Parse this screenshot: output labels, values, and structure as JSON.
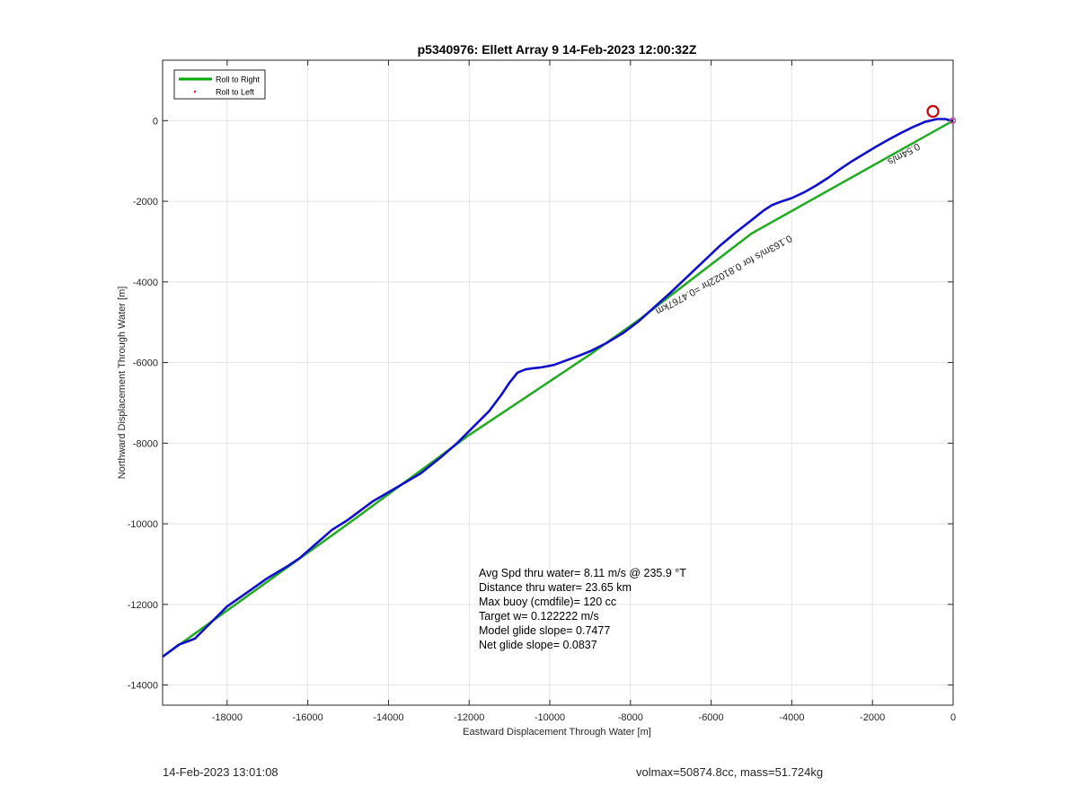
{
  "chart_data": {
    "type": "line",
    "title": "p5340976: Ellett Array 9 14-Feb-2023 12:00:32Z",
    "xlabel": "Eastward Displacement Through Water [m]",
    "ylabel": "Northward Displacement Through Water [m]",
    "xlim": [
      -19600,
      0
    ],
    "ylim": [
      -14500,
      1500
    ],
    "xticks": [
      -18000,
      -16000,
      -14000,
      -12000,
      -10000,
      -8000,
      -6000,
      -4000,
      -2000,
      0
    ],
    "yticks": [
      0,
      -2000,
      -4000,
      -6000,
      -8000,
      -10000,
      -12000,
      -14000
    ],
    "grid": true,
    "legend_position": "top-left",
    "legend": [
      {
        "label": "Roll to Right",
        "color": "#00aa00",
        "style": "line"
      },
      {
        "label": "Roll to Left",
        "color": "#ff0000",
        "style": "dot"
      }
    ],
    "series": [
      {
        "name": "Roll to Right",
        "color": "#22aa22",
        "x": [
          -19600,
          -15000,
          -12000,
          -9000,
          -7800,
          -5000,
          0
        ],
        "y": [
          -13300,
          -10000,
          -7800,
          -5800,
          -4950,
          -2800,
          0
        ]
      },
      {
        "color": "#1010cc",
        "x": [
          -19600,
          -19200,
          -18800,
          -18400,
          -18000,
          -17500,
          -17000,
          -16500,
          -16200,
          -15800,
          -15400,
          -15000,
          -14400,
          -13800,
          -13200,
          -12700,
          -12300,
          -11900,
          -11500,
          -11200,
          -11000,
          -10800,
          -10600,
          -10400,
          -10200,
          -9900,
          -9600,
          -9300,
          -9000,
          -8600,
          -8200,
          -7800,
          -7400,
          -7000,
          -6600,
          -6200,
          -5800,
          -5400,
          -5000,
          -4700,
          -4500,
          -4300,
          -4000,
          -3700,
          -3400,
          -3100,
          -2800,
          -2500,
          -2200,
          -1900,
          -1600,
          -1300,
          -1000,
          -700,
          -400,
          -200,
          -80,
          0
        ],
        "y": [
          -13300,
          -13000,
          -12850,
          -12450,
          -12050,
          -11700,
          -11350,
          -11050,
          -10850,
          -10500,
          -10150,
          -9900,
          -9450,
          -9100,
          -8750,
          -8350,
          -8000,
          -7600,
          -7200,
          -6800,
          -6500,
          -6250,
          -6170,
          -6140,
          -6120,
          -6060,
          -5950,
          -5840,
          -5720,
          -5520,
          -5280,
          -4980,
          -4620,
          -4260,
          -3880,
          -3500,
          -3120,
          -2780,
          -2470,
          -2230,
          -2100,
          -2020,
          -1920,
          -1780,
          -1610,
          -1420,
          -1200,
          -1000,
          -820,
          -640,
          -470,
          -310,
          -160,
          -30,
          40,
          40,
          10,
          0
        ]
      }
    ],
    "markers": [
      {
        "type": "circle",
        "color": "#cc0000",
        "x": -500,
        "y": 230
      },
      {
        "type": "small-circle",
        "color": "#cc44aa",
        "x": -10,
        "y": 0
      }
    ],
    "annotations": [
      {
        "text": "Avg Spd thru water=  8.11 m/s @ 235.9 °T"
      },
      {
        "text": "Distance thru water= 23.65 km"
      },
      {
        "text": "Max buoy (cmdfile)= 120 cc"
      },
      {
        "text": "Target w= 0.122222 m/s"
      },
      {
        "text": "Model glide slope= 0.7477"
      },
      {
        "text": "Net glide slope= 0.0837"
      }
    ],
    "rotated_label": "0.163m/s for 0.81022hr =0.4767km",
    "clutter_label": "0.54m/s"
  },
  "footer": {
    "timestamp": "14-Feb-2023 13:01:08",
    "stats": "volmax=50874.8cc, mass=51.724kg"
  }
}
